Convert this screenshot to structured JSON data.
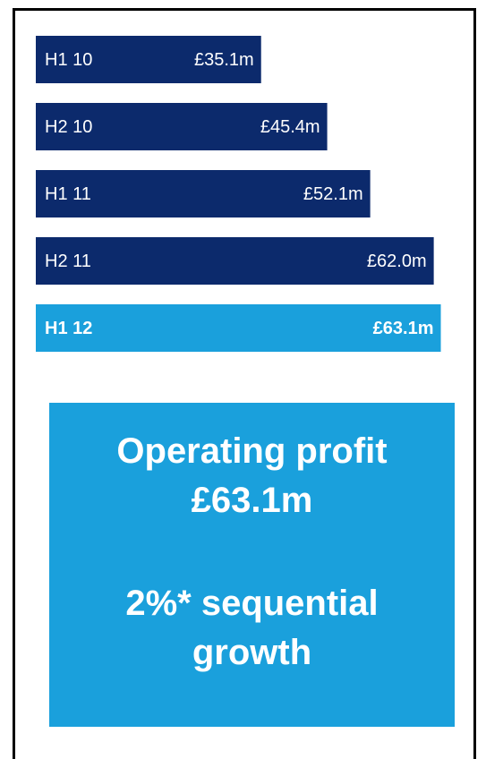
{
  "chart_data": {
    "type": "bar",
    "categories": [
      "H1 10",
      "H2 10",
      "H1 11",
      "H2 11",
      "H1 12"
    ],
    "values": [
      35.1,
      45.4,
      52.1,
      62.0,
      63.1
    ],
    "value_labels": [
      "£35.1m",
      "£45.4m",
      "£52.1m",
      "£62.0m",
      "£63.1m"
    ],
    "colors": [
      "#0c2a6c",
      "#0c2a6c",
      "#0c2a6c",
      "#0c2a6c",
      "#1aa0dc"
    ],
    "xlim": [
      0,
      70
    ],
    "annotation": {
      "headline": "Operating profit",
      "value": "£63.1m",
      "note": "2%* sequential growth"
    },
    "annotation_color": "#1aa0dc"
  }
}
